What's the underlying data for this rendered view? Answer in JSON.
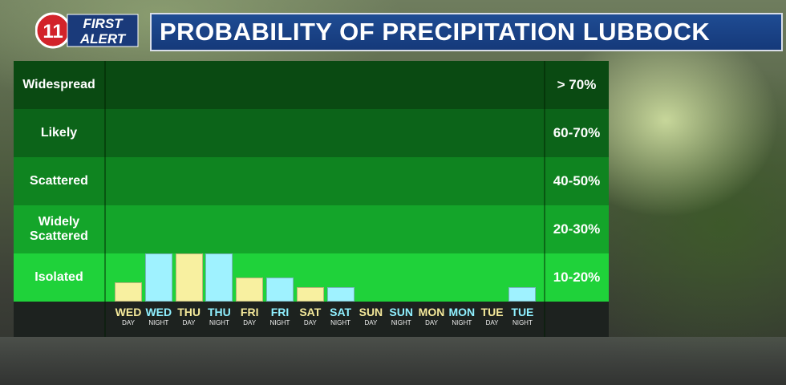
{
  "header": {
    "logo_number": "11",
    "logo_line1": "FIRST",
    "logo_line2": "ALERT",
    "title": "PROBABILITY OF PRECIPITATION LUBBOCK"
  },
  "chart_data": {
    "type": "bar",
    "title": "PROBABILITY OF PRECIPITATION LUBBOCK",
    "bands": [
      {
        "label": "Widespread",
        "range": "> 70%",
        "color": "#0a4a12"
      },
      {
        "label": "Likely",
        "range": "60-70%",
        "color": "#0c6419"
      },
      {
        "label": "Scattered",
        "range": "40-50%",
        "color": "#0f8420"
      },
      {
        "label": "Widely Scattered",
        "range": "20-30%",
        "color": "#14a52a"
      },
      {
        "label": "Isolated",
        "range": "10-20%",
        "color": "#1fd23a"
      }
    ],
    "categories": [
      {
        "day": "WED",
        "period": "DAY"
      },
      {
        "day": "WED",
        "period": "NIGHT"
      },
      {
        "day": "THU",
        "period": "DAY"
      },
      {
        "day": "THU",
        "period": "NIGHT"
      },
      {
        "day": "FRI",
        "period": "DAY"
      },
      {
        "day": "FRI",
        "period": "NIGHT"
      },
      {
        "day": "SAT",
        "period": "DAY"
      },
      {
        "day": "SAT",
        "period": "NIGHT"
      },
      {
        "day": "SUN",
        "period": "DAY"
      },
      {
        "day": "SUN",
        "period": "NIGHT"
      },
      {
        "day": "MON",
        "period": "DAY"
      },
      {
        "day": "MON",
        "period": "NIGHT"
      },
      {
        "day": "TUE",
        "period": "DAY"
      },
      {
        "day": "TUE",
        "period": "NIGHT"
      }
    ],
    "values": [
      4,
      10,
      10,
      10,
      5,
      5,
      3,
      3,
      0,
      0,
      0,
      0,
      0,
      3
    ],
    "ylim": [
      0,
      10
    ],
    "day_bar_color": "#f8f0a0",
    "night_bar_color": "#9ff2ff"
  }
}
